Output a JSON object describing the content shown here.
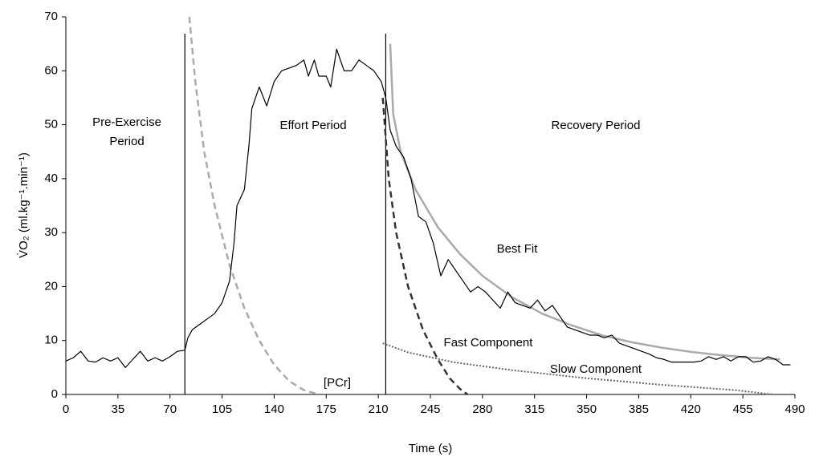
{
  "chart_data": {
    "type": "line",
    "xlabel": "Time (s)",
    "ylabel": "V̇O₂ (ml.kg⁻¹.min⁻¹)",
    "xlim": [
      0,
      490
    ],
    "xticks": [
      0,
      35,
      70,
      105,
      140,
      175,
      210,
      245,
      280,
      315,
      350,
      385,
      420,
      455,
      490
    ],
    "ylim": [
      0,
      70
    ],
    "yticks": [
      0,
      10,
      20,
      30,
      40,
      50,
      60,
      70
    ],
    "grid": false,
    "markers": [
      80,
      215
    ],
    "annotations": [
      {
        "lines": [
          "Pre-Exercise",
          "Period"
        ]
      },
      {
        "lines": [
          "Effort Period"
        ]
      },
      {
        "lines": [
          "Recovery Period"
        ]
      }
    ],
    "series": [
      {
        "name": "V̇O₂",
        "color": "#000000",
        "dash": "solid",
        "width": 1.2,
        "x": [
          0,
          5,
          10,
          15,
          20,
          25,
          30,
          35,
          40,
          45,
          50,
          55,
          60,
          65,
          70,
          75,
          80,
          82,
          85,
          90,
          95,
          100,
          105,
          110,
          113,
          115,
          120,
          123,
          125,
          130,
          135,
          140,
          145,
          150,
          155,
          160,
          163,
          167,
          170,
          175,
          178,
          182,
          187,
          192,
          197,
          202,
          207,
          212,
          215,
          218,
          222,
          227,
          232,
          237,
          242,
          247,
          252,
          257,
          262,
          267,
          272,
          277,
          282,
          287,
          292,
          297,
          302,
          307,
          312,
          317,
          322,
          327,
          332,
          337,
          342,
          347,
          352,
          357,
          362,
          367,
          372,
          377,
          382,
          387,
          392,
          397,
          402,
          407,
          412,
          417,
          422,
          427,
          432,
          437,
          442,
          447,
          452,
          457,
          462,
          467,
          472,
          477,
          482,
          487
        ],
        "y": [
          6.2,
          6.8,
          8,
          6.2,
          6,
          6.8,
          6.2,
          6.8,
          5,
          6.5,
          8,
          6.2,
          6.8,
          6.2,
          7,
          8,
          8.2,
          10.5,
          12,
          13,
          14,
          15,
          17,
          21,
          28,
          35,
          38,
          46,
          53,
          57,
          53.5,
          58,
          60,
          60.5,
          61,
          62,
          59,
          62,
          59,
          59,
          57,
          64,
          60,
          60,
          62,
          61,
          60,
          58,
          55,
          49,
          46,
          44,
          40,
          33,
          32,
          28,
          22,
          25,
          23,
          21,
          19,
          20,
          19,
          17.5,
          16,
          19,
          17,
          16.5,
          16,
          17.5,
          15.5,
          16.5,
          14.5,
          12.5,
          12,
          11.5,
          11,
          11,
          10.5,
          11,
          9.5,
          9,
          8.5,
          8,
          7.5,
          6.8,
          6.5,
          6,
          6,
          6,
          6,
          6.2,
          7,
          6.5,
          7,
          6.2,
          7,
          7,
          6,
          6.2,
          7,
          6.5,
          5.5,
          5.5
        ]
      },
      {
        "name": "Best Fit",
        "color": "#aaaaaa",
        "dash": "solid",
        "width": 2.5,
        "x": [
          218,
          220,
          225,
          235,
          250,
          265,
          280,
          300,
          320,
          340,
          360,
          380,
          400,
          420,
          440,
          460,
          480
        ],
        "y": [
          65,
          52,
          45,
          38,
          31,
          26,
          22,
          18,
          15,
          12.8,
          11,
          9.7,
          8.7,
          7.9,
          7.3,
          6.8,
          6.5
        ]
      },
      {
        "name": "Fast Component",
        "color": "#333333",
        "dash": "dashed",
        "width": 2.5,
        "x": [
          213,
          217,
          222,
          230,
          240,
          250,
          258,
          265,
          270
        ],
        "y": [
          55,
          40,
          30,
          20,
          12,
          6.5,
          3,
          1,
          0
        ]
      },
      {
        "name": "Slow Component",
        "color": "#666666",
        "dash": "dotted",
        "width": 2,
        "x": [
          213,
          230,
          260,
          300,
          350,
          400,
          450,
          475
        ],
        "y": [
          9.5,
          7.8,
          6,
          4.5,
          3,
          1.8,
          0.8,
          0
        ]
      },
      {
        "name": "[PCr]",
        "color": "#aaaaaa",
        "dash": "dashed",
        "width": 2.5,
        "x": [
          83,
          87,
          93,
          100,
          110,
          120,
          130,
          140,
          150,
          160,
          170
        ],
        "y": [
          70,
          58,
          45,
          35,
          24,
          16,
          10,
          5.5,
          2.5,
          0.8,
          0
        ]
      }
    ]
  }
}
